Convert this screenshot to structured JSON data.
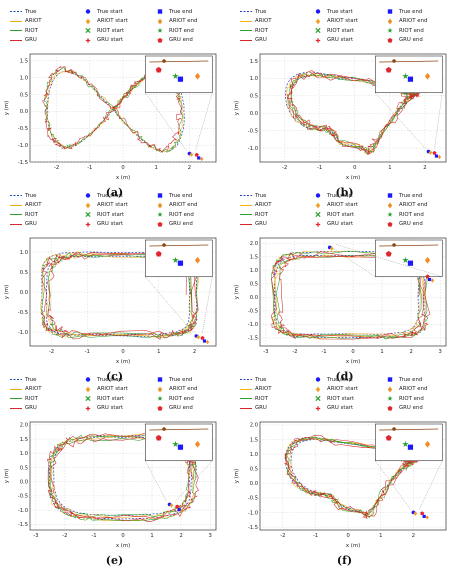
{
  "legend_labels": {
    "true": "True",
    "ariot": "ARIOT",
    "riot": "RIOT",
    "gru": "GRU",
    "true_start": "True start",
    "ariot_start": "ARIOT start",
    "riot_start": "RIOT start",
    "gru_start": "GRU start",
    "true_end": "True end",
    "ariot_end": "ARIOT end",
    "riot_end": "RIOT end",
    "gru_end": "GRU end"
  },
  "colors": {
    "true": "#1f3fbf",
    "ariot": "#f5b31a",
    "riot": "#2ea02e",
    "gru": "#d62728",
    "ariot_marker": "#f0a020",
    "riot_marker": "#2ea02e",
    "gru_marker": "#e3262e",
    "true_marker": "#1a1aff",
    "ariot_end_marker": "#f28c1e"
  },
  "chart_data": [
    {
      "panel": "(a)",
      "type": "line",
      "xlabel": "x (m)",
      "ylabel": "y (m)",
      "xlim": [
        -2.8,
        2.8
      ],
      "ylim": [
        -1.5,
        1.7
      ],
      "xticks": [
        -2,
        -1,
        0,
        1,
        2
      ],
      "yticks": [
        -1.5,
        -1.0,
        -0.5,
        0.0,
        0.5,
        1.0,
        1.5
      ],
      "shape": "figure8",
      "cx": -0.3,
      "cy": 0.05,
      "rx": 2.1,
      "ry": 1.3,
      "start": [
        2.0,
        -1.25
      ],
      "end": [
        2.25,
        -1.35
      ],
      "grid": true
    },
    {
      "panel": "(b)",
      "type": "line",
      "xlabel": "x (m)",
      "ylabel": "y (m)",
      "xlim": [
        -2.7,
        2.6
      ],
      "ylim": [
        -1.4,
        1.7
      ],
      "xticks": [
        -2,
        -1,
        0,
        1,
        2
      ],
      "yticks": [
        -1.0,
        -0.5,
        0.0,
        0.5,
        1.0,
        1.5
      ],
      "shape": "loops",
      "cx": -0.1,
      "cy": 0.05,
      "rx": 2.0,
      "ry": 1.2,
      "start": [
        2.1,
        -1.1
      ],
      "end": [
        2.3,
        -1.2
      ],
      "grid": true
    },
    {
      "panel": "(c)",
      "type": "line",
      "xlabel": "x (m)",
      "ylabel": "y (m)",
      "xlim": [
        -2.6,
        2.6
      ],
      "ylim": [
        -1.35,
        1.35
      ],
      "xticks": [
        -2,
        -1,
        0,
        1,
        2
      ],
      "yticks": [
        -1.0,
        -0.5,
        0.0,
        0.5,
        1.0
      ],
      "shape": "rect",
      "cx": -0.1,
      "cy": -0.05,
      "rx": 2.05,
      "ry": 1.0,
      "start": [
        2.05,
        -1.1
      ],
      "end": [
        2.25,
        -1.2
      ],
      "grid": true
    },
    {
      "panel": "(d)",
      "type": "line",
      "xlabel": "x (m)",
      "ylabel": "y (m)",
      "xlim": [
        -3.2,
        3.2
      ],
      "ylim": [
        -1.8,
        2.2
      ],
      "xticks": [
        -3,
        -2,
        -1,
        0,
        1,
        2,
        3
      ],
      "yticks": [
        -1.5,
        -1.0,
        -0.5,
        0.0,
        0.5,
        1.0,
        1.5,
        2.0
      ],
      "shape": "rect",
      "cx": -0.1,
      "cy": 0.1,
      "rx": 2.5,
      "ry": 1.5,
      "start": [
        -0.8,
        1.85
      ],
      "end": [
        2.6,
        0.7
      ],
      "grid": true
    },
    {
      "panel": "(e)",
      "type": "line",
      "xlabel": "x (m)",
      "ylabel": "y (m)",
      "xlim": [
        -3.2,
        3.2
      ],
      "ylim": [
        -1.7,
        2.1
      ],
      "xticks": [
        -3,
        -2,
        -1,
        0,
        1,
        2,
        3
      ],
      "yticks": [
        -1.5,
        -1.0,
        -0.5,
        0.0,
        0.5,
        1.0,
        1.5,
        2.0
      ],
      "shape": "oval",
      "cx": 0.0,
      "cy": 0.15,
      "rx": 2.4,
      "ry": 1.4,
      "start": [
        1.6,
        -0.8
      ],
      "end": [
        1.9,
        -0.95
      ],
      "grid": true
    },
    {
      "panel": "(f)",
      "type": "line",
      "xlabel": "x (m)",
      "ylabel": "y (m)",
      "xlim": [
        -2.7,
        3.0
      ],
      "ylim": [
        -1.6,
        2.1
      ],
      "xticks": [
        -2,
        -1,
        0,
        1,
        2
      ],
      "yticks": [
        -1.5,
        -1.0,
        -0.5,
        0.0,
        0.5,
        1.0,
        1.5,
        2.0
      ],
      "shape": "loops",
      "cx": 0.1,
      "cy": 0.2,
      "rx": 2.1,
      "ry": 1.4,
      "start": [
        2.0,
        -1.0
      ],
      "end": [
        2.3,
        -1.1
      ],
      "grid": true
    }
  ]
}
